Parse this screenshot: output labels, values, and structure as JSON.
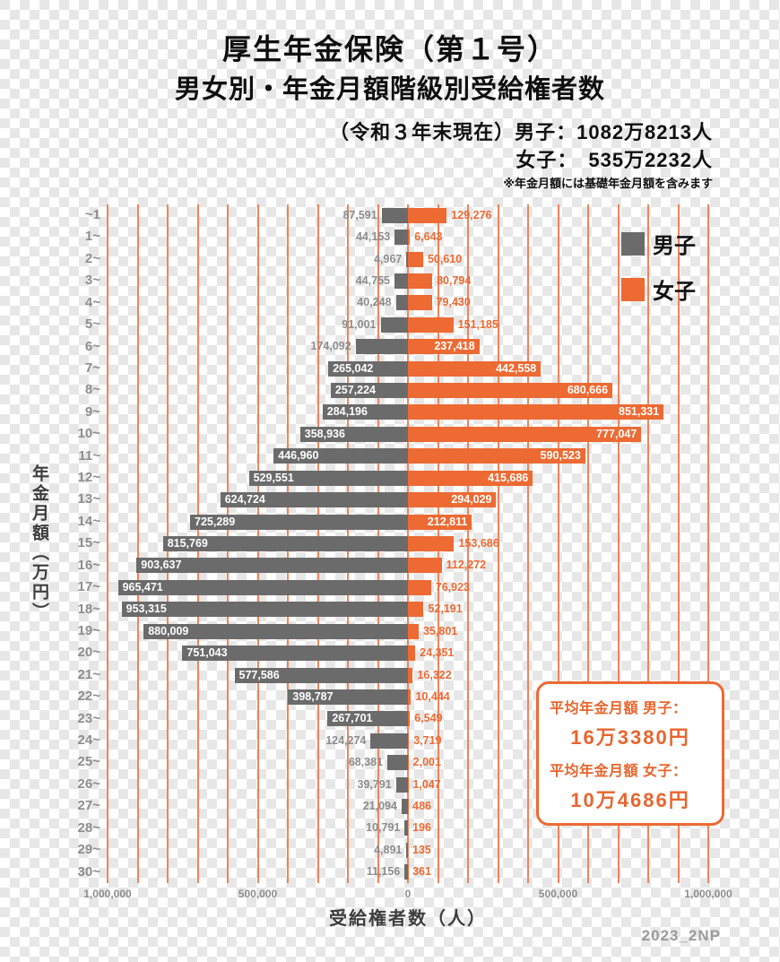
{
  "header": {
    "title": "厚生年金保険（第１号）",
    "subtitle": "男女別・年金月額階級別受給権者数",
    "line1": "（令和３年末現在）男子：1082万8213人",
    "line2": "女子：　535万2232人",
    "note": "※年金月額には基礎年金月額を含みます"
  },
  "legend": {
    "male": "男子",
    "female": "女子"
  },
  "axes": {
    "y_label": "年金月額（万円）",
    "x_label": "受給権者数（人）",
    "x_ticks": [
      "1,000,000",
      "500,000",
      "0",
      "500,000",
      "1,000,000"
    ]
  },
  "annotation": {
    "male_label": "平均年金月額 男子：",
    "male_value": "16万3380円",
    "female_label": "平均年金月額 女子：",
    "female_value": "10万4686円"
  },
  "footer": "2023_2NP",
  "colors": {
    "male": "#6b6b6b",
    "female": "#ed6a33",
    "grid": "#f0845a",
    "annotation": "#e8652d"
  },
  "chart_data": {
    "type": "bar",
    "orientation": "diverging-horizontal",
    "title": "厚生年金保険（第１号）男女別・年金月額階級別受給権者数",
    "xlabel": "受給権者数（人）",
    "ylabel": "年金月額（万円）",
    "xlim": [
      -1000000,
      1000000
    ],
    "grid_step": 100000,
    "legend_position": "top-right",
    "categories": [
      "~1",
      "1~",
      "2~",
      "3~",
      "4~",
      "5~",
      "6~",
      "7~",
      "8~",
      "9~",
      "10~",
      "11~",
      "12~",
      "13~",
      "14~",
      "15~",
      "16~",
      "17~",
      "18~",
      "19~",
      "20~",
      "21~",
      "22~",
      "23~",
      "24~",
      "25~",
      "26~",
      "27~",
      "28~",
      "29~",
      "30~"
    ],
    "series": [
      {
        "name": "男子",
        "direction": "left",
        "color": "#6b6b6b",
        "values": [
          87591,
          44153,
          4967,
          44755,
          40248,
          91001,
          174092,
          265042,
          257224,
          284196,
          358936,
          446960,
          529551,
          624724,
          725289,
          815769,
          903637,
          965471,
          953315,
          880009,
          751043,
          577586,
          398787,
          267701,
          124274,
          68381,
          39791,
          21094,
          10791,
          4891,
          11156
        ]
      },
      {
        "name": "女子",
        "direction": "right",
        "color": "#ed6a33",
        "values": [
          129276,
          6643,
          50610,
          80794,
          79430,
          151185,
          237418,
          442558,
          680666,
          851331,
          777047,
          590523,
          415686,
          294029,
          212811,
          153686,
          112272,
          76923,
          52191,
          35801,
          24351,
          16322,
          10444,
          6549,
          3719,
          2001,
          1047,
          486,
          196,
          135,
          361
        ]
      }
    ]
  }
}
